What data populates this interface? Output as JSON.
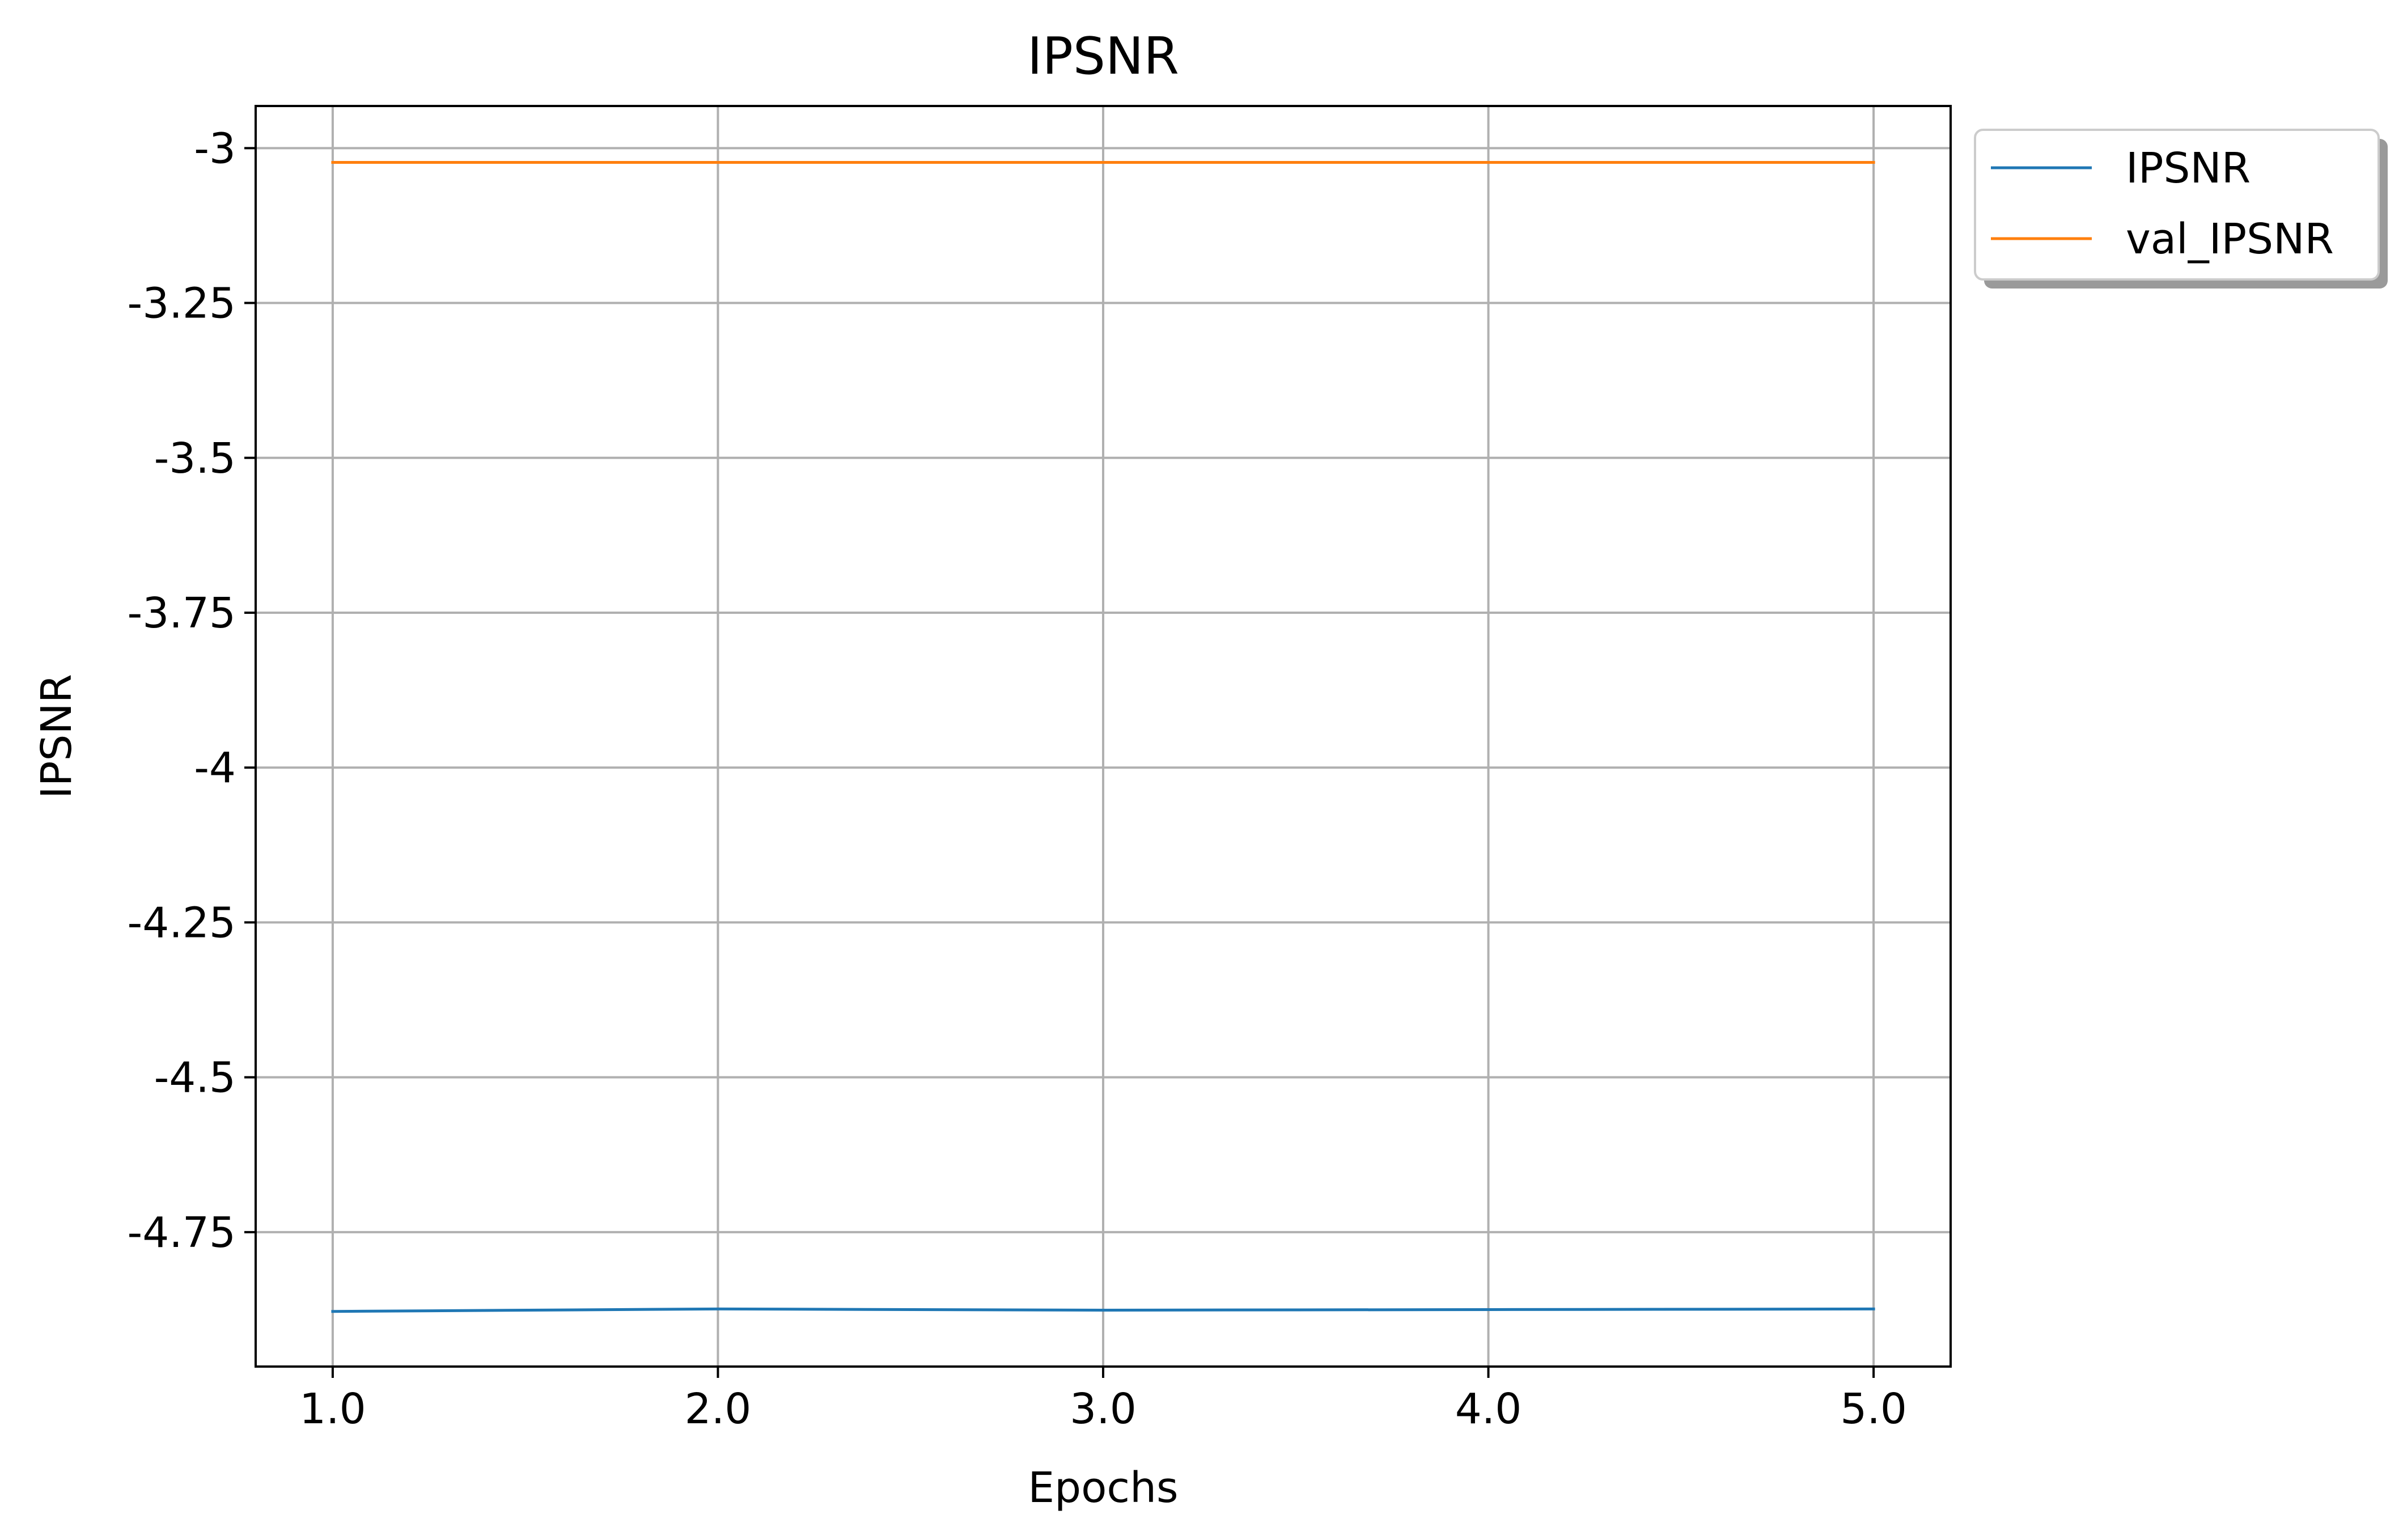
{
  "chart_data": {
    "type": "line",
    "title": "IPSNR",
    "xlabel": "Epochs",
    "ylabel": "IPSNR",
    "x": [
      1.0,
      2.0,
      3.0,
      4.0,
      5.0
    ],
    "xlim": [
      0.8,
      5.2
    ],
    "ylim": [
      -4.967,
      -2.932
    ],
    "xticks": [
      1.0,
      2.0,
      3.0,
      4.0,
      5.0
    ],
    "xtick_labels": [
      "1.0",
      "2.0",
      "3.0",
      "4.0",
      "5.0"
    ],
    "yticks": [
      -3,
      -3.25,
      -3.5,
      -3.75,
      -4,
      -4.25,
      -4.5,
      -4.75
    ],
    "ytick_labels": [
      "-3",
      "-3.25",
      "-3.5",
      "-3.75",
      "-4",
      "-4.25",
      "-4.5",
      "-4.75"
    ],
    "grid": true,
    "legend_position": "outside-top-right",
    "series": [
      {
        "name": "IPSNR",
        "color": "#1f77b4",
        "values": [
          -4.878,
          -4.874,
          -4.876,
          -4.875,
          -4.874
        ]
      },
      {
        "name": "val_IPSNR",
        "color": "#ff7f0e",
        "values": [
          -3.023,
          -3.023,
          -3.023,
          -3.023,
          -3.023
        ]
      }
    ]
  }
}
